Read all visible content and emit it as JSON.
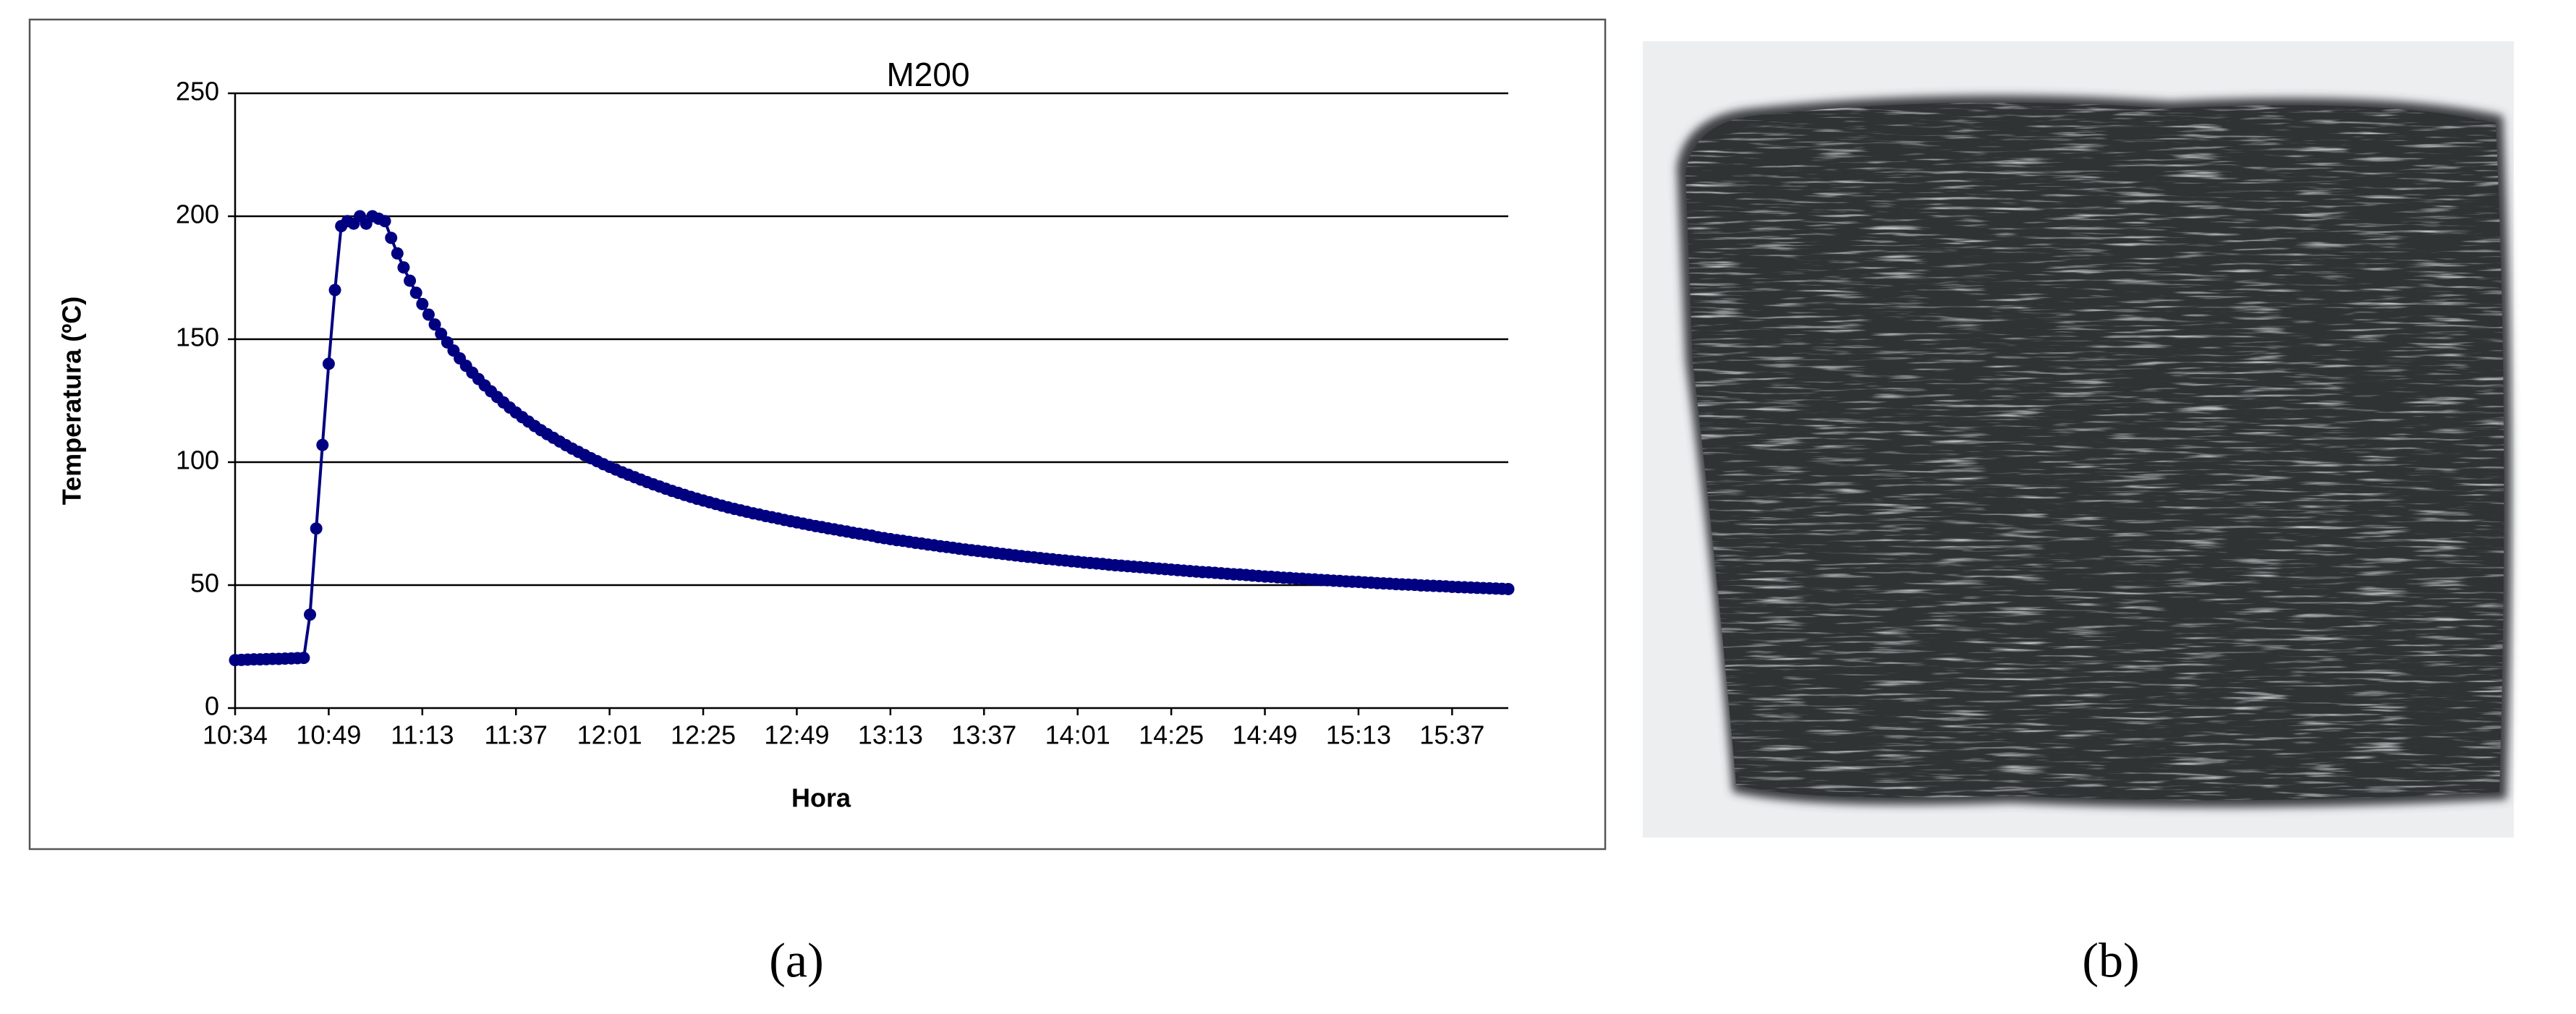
{
  "chart_data": {
    "type": "line",
    "title": "M200",
    "x_label": "Hora",
    "y_label": "Temperatura (ºC)",
    "color": "#000080",
    "grid": true,
    "ylim": [
      0,
      250
    ],
    "yticks": [
      0,
      50,
      100,
      150,
      200,
      250
    ],
    "categories": [
      "10:34",
      null,
      null,
      null,
      null,
      null,
      null,
      null,
      null,
      null,
      null,
      null,
      null,
      null,
      null,
      "10:49",
      null,
      null,
      null,
      null,
      null,
      null,
      null,
      null,
      null,
      null,
      null,
      null,
      null,
      null,
      "11:13",
      null,
      null,
      null,
      null,
      null,
      null,
      null,
      null,
      null,
      null,
      null,
      null,
      null,
      null,
      "11:37",
      null,
      null,
      null,
      null,
      null,
      null,
      null,
      null,
      null,
      null,
      null,
      null,
      null,
      null,
      "12:01",
      null,
      null,
      null,
      null,
      null,
      null,
      null,
      null,
      null,
      null,
      null,
      null,
      null,
      null,
      "12:25",
      null,
      null,
      null,
      null,
      null,
      null,
      null,
      null,
      null,
      null,
      null,
      null,
      null,
      null,
      "12:49",
      null,
      null,
      null,
      null,
      null,
      null,
      null,
      null,
      null,
      null,
      null,
      null,
      null,
      null,
      "13:13",
      null,
      null,
      null,
      null,
      null,
      null,
      null,
      null,
      null,
      null,
      null,
      null,
      null,
      null,
      "13:37",
      null,
      null,
      null,
      null,
      null,
      null,
      null,
      null,
      null,
      null,
      null,
      null,
      null,
      null,
      "14:01",
      null,
      null,
      null,
      null,
      null,
      null,
      null,
      null,
      null,
      null,
      null,
      null,
      null,
      null,
      "14:25",
      null,
      null,
      null,
      null,
      null,
      null,
      null,
      null,
      null,
      null,
      null,
      null,
      null,
      null,
      "14:49",
      null,
      null,
      null,
      null,
      null,
      null,
      null,
      null,
      null,
      null,
      null,
      null,
      null,
      null,
      "15:13",
      null,
      null,
      null,
      null,
      null,
      null,
      null,
      null,
      null,
      null,
      null,
      null,
      null,
      null,
      "15:37",
      null,
      null,
      null,
      null,
      null,
      null,
      null,
      null,
      null
    ],
    "values": [
      19.5,
      19.6,
      19.7,
      19.8,
      19.8,
      19.9,
      20,
      20,
      20.1,
      20.2,
      20.3,
      20.4,
      38,
      73,
      107,
      140,
      170,
      196,
      198,
      197,
      200,
      197,
      200,
      199,
      198,
      191.2,
      184.9,
      179.2,
      173.8,
      168.9,
      164.3,
      160.0,
      156.0,
      152.2,
      148.7,
      145.4,
      142.2,
      139.2,
      136.4,
      133.8,
      131.2,
      128.8,
      126.5,
      124.3,
      122.2,
      120.2,
      118.3,
      116.5,
      114.7,
      113.0,
      111.4,
      109.9,
      108.4,
      106.9,
      105.5,
      104.2,
      102.9,
      101.6,
      100.4,
      99.2,
      98.1,
      97.0,
      95.9,
      94.9,
      93.9,
      92.9,
      91.9,
      91.0,
      90.1,
      89.2,
      88.3,
      87.5,
      86.7,
      85.9,
      85.1,
      84.4,
      83.7,
      83.0,
      82.3,
      81.6,
      81.0,
      80.4,
      79.8,
      79.2,
      78.7,
      78.1,
      77.6,
      77.1,
      76.5,
      76.0,
      75.5,
      75.0,
      74.5,
      74.0,
      73.6,
      73.1,
      72.7,
      72.2,
      71.8,
      71.3,
      70.9,
      70.5,
      70.1,
      69.5,
      69.1,
      68.7,
      68.3,
      68.0,
      67.6,
      67.2,
      66.9,
      66.5,
      66.2,
      65.8,
      65.5,
      65.2,
      64.8,
      64.5,
      64.2,
      63.9,
      63.6,
      63.3,
      63.0,
      62.7,
      62.4,
      62.1,
      61.8,
      61.5,
      61.3,
      61.0,
      60.7,
      60.5,
      60.2,
      60.0,
      59.7,
      59.5,
      59.2,
      59.0,
      58.8,
      58.6,
      58.3,
      58.1,
      57.9,
      57.7,
      57.5,
      57.3,
      57.1,
      56.9,
      56.7,
      56.5,
      56.3,
      56.1,
      55.9,
      55.7,
      55.5,
      55.3,
      55.2,
      55.0,
      54.8,
      54.6,
      54.4,
      54.3,
      54.1,
      53.9,
      53.7,
      53.5,
      53.4,
      53.2,
      53.0,
      52.9,
      52.7,
      52.6,
      52.4,
      52.3,
      52.1,
      52.0,
      51.8,
      51.7,
      51.5,
      51.4,
      51.3,
      51.1,
      51.0,
      50.8,
      50.7,
      50.6,
      50.4,
      50.3,
      50.2,
      50.1,
      49.9,
      49.8,
      49.7,
      49.6,
      49.5,
      49.3,
      49.2,
      49.1,
      49.0,
      48.9,
      48.8,
      48.7,
      48.6,
      48.5,
      48.4
    ]
  },
  "figure_labels": [
    "(a)",
    "(b)"
  ]
}
